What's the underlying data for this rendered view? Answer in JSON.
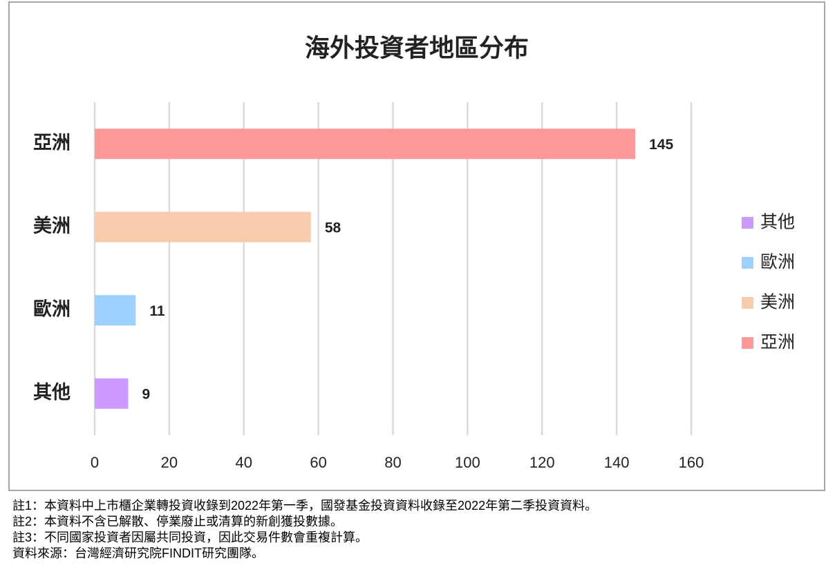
{
  "chart_data": {
    "type": "bar",
    "orientation": "horizontal",
    "title": "海外投資者地區分布",
    "categories": [
      "亞洲",
      "美洲",
      "歐洲",
      "其他"
    ],
    "values": [
      145,
      58,
      11,
      9
    ],
    "colors": [
      "#ff9999",
      "#f8cbad",
      "#9dcfff",
      "#cc99ff"
    ],
    "xlim": [
      0,
      160
    ],
    "xticks": [
      0,
      20,
      40,
      60,
      80,
      100,
      120,
      140,
      160
    ],
    "grid": true,
    "legend": "right"
  },
  "notes": [
    "註1：本資料中上市櫃企業轉投資收錄到2022年第一季，國發基金投資資料收錄至2022年第二季投資資料。",
    "註2：本資料不含已解散、停業廢止或清算的新創獲投數據。",
    "註3：不同國家投資者因屬共同投資，因此交易件數會重複計算。",
    "資料來源：台灣經濟研究院FINDIT研究團隊。"
  ]
}
